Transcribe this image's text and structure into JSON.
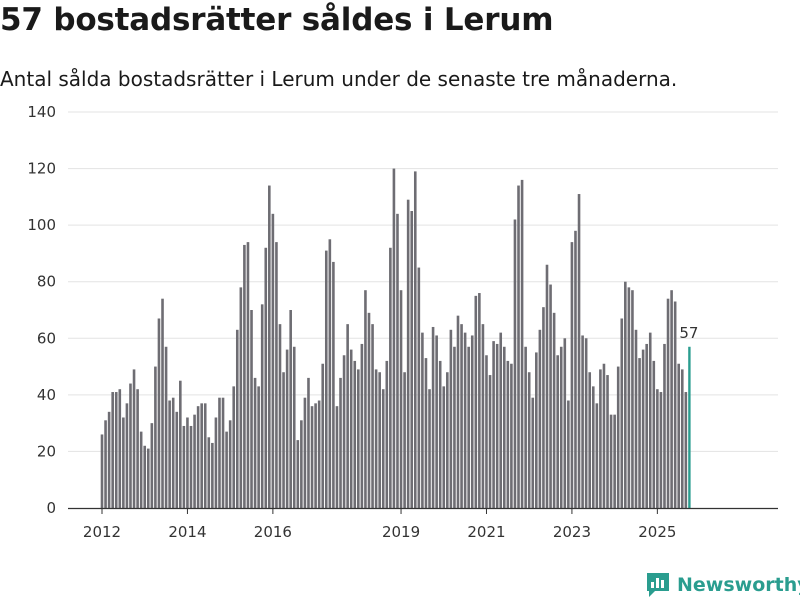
{
  "title": "57 bostadsrätter såldes i Lerum",
  "subtitle": "Antal sålda bostadsrätter i Lerum under de senaste tre månaderna.",
  "brand": "Newsworthy",
  "colors": {
    "bar": "#6e6d73",
    "highlight": "#2a9d8f",
    "grid": "#e3e3e3",
    "axis": "#333333"
  },
  "chart_data": {
    "type": "bar",
    "title": "57 bostadsrätter såldes i Lerum",
    "xlabel": "",
    "ylabel": "",
    "ylim": [
      0,
      140
    ],
    "yticks": [
      0,
      20,
      40,
      60,
      80,
      100,
      120,
      140
    ],
    "start_year": 2012,
    "start_month": 1,
    "x_tick_labels": [
      {
        "label": "2012",
        "index": 0
      },
      {
        "label": "2014",
        "index": 24
      },
      {
        "label": "2016",
        "index": 48
      },
      {
        "label": "2019",
        "index": 84
      },
      {
        "label": "2021",
        "index": 108
      },
      {
        "label": "2023",
        "index": 132
      },
      {
        "label": "2025",
        "index": 156
      }
    ],
    "values": [
      26,
      31,
      34,
      41,
      41,
      42,
      32,
      37,
      44,
      49,
      42,
      27,
      22,
      21,
      30,
      50,
      67,
      74,
      57,
      38,
      39,
      34,
      45,
      29,
      32,
      29,
      33,
      36,
      37,
      37,
      25,
      23,
      32,
      39,
      39,
      27,
      31,
      43,
      63,
      78,
      93,
      94,
      70,
      46,
      43,
      72,
      92,
      114,
      104,
      94,
      65,
      48,
      56,
      70,
      57,
      24,
      31,
      39,
      46,
      36,
      37,
      38,
      51,
      91,
      95,
      87,
      36,
      46,
      54,
      65,
      56,
      52,
      49,
      58,
      77,
      69,
      65,
      49,
      48,
      42,
      52,
      92,
      120,
      104,
      77,
      48,
      109,
      105,
      119,
      85,
      62,
      53,
      42,
      64,
      61,
      52,
      43,
      48,
      63,
      57,
      68,
      65,
      62,
      57,
      61,
      75,
      76,
      65,
      54,
      47,
      59,
      58,
      62,
      57,
      52,
      51,
      102,
      114,
      116,
      57,
      48,
      39,
      55,
      63,
      71,
      86,
      79,
      69,
      54,
      57,
      60,
      38,
      94,
      98,
      111,
      61,
      60,
      48,
      43,
      37,
      49,
      51,
      47,
      33,
      33,
      50,
      67,
      80,
      78,
      77,
      63,
      53,
      56,
      58,
      62,
      52,
      42,
      41,
      58,
      74,
      77,
      73,
      51,
      49,
      41,
      57
    ],
    "highlight_last": true,
    "annotation": {
      "label": "57",
      "index": 165
    }
  }
}
